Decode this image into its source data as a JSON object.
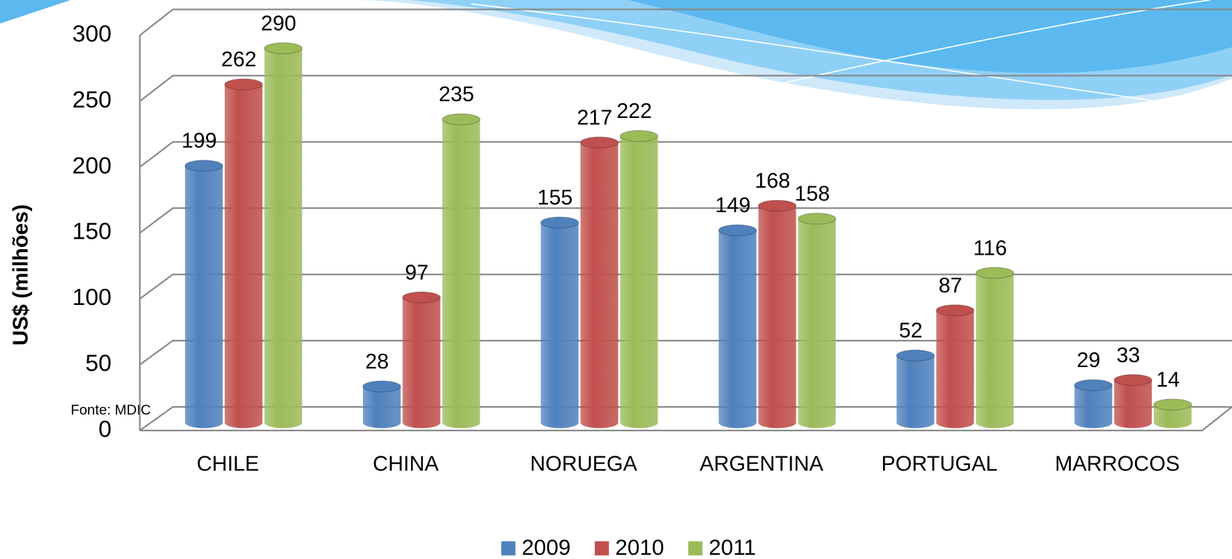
{
  "chart_data": {
    "type": "bar3d",
    "y_axis_label": "US$ (milhões)",
    "annotation": "Fonte: MDIC",
    "categories": [
      "CHILE",
      "CHINA",
      "NORUEGA",
      "ARGENTINA",
      "PORTUGAL",
      "MARROCOS"
    ],
    "series": [
      {
        "name": "2009",
        "color": "#4f81bd",
        "values": [
          199,
          28,
          155,
          149,
          52,
          29
        ]
      },
      {
        "name": "2010",
        "color": "#c0504d",
        "values": [
          262,
          97,
          217,
          168,
          87,
          33
        ]
      },
      {
        "name": "2011",
        "color": "#9bbb59",
        "values": [
          290,
          235,
          222,
          158,
          116,
          14
        ]
      }
    ],
    "ylim": [
      0,
      300
    ],
    "yticks": [
      0,
      50,
      100,
      150,
      200,
      250,
      300
    ],
    "grid": true,
    "legend": "bottom"
  }
}
